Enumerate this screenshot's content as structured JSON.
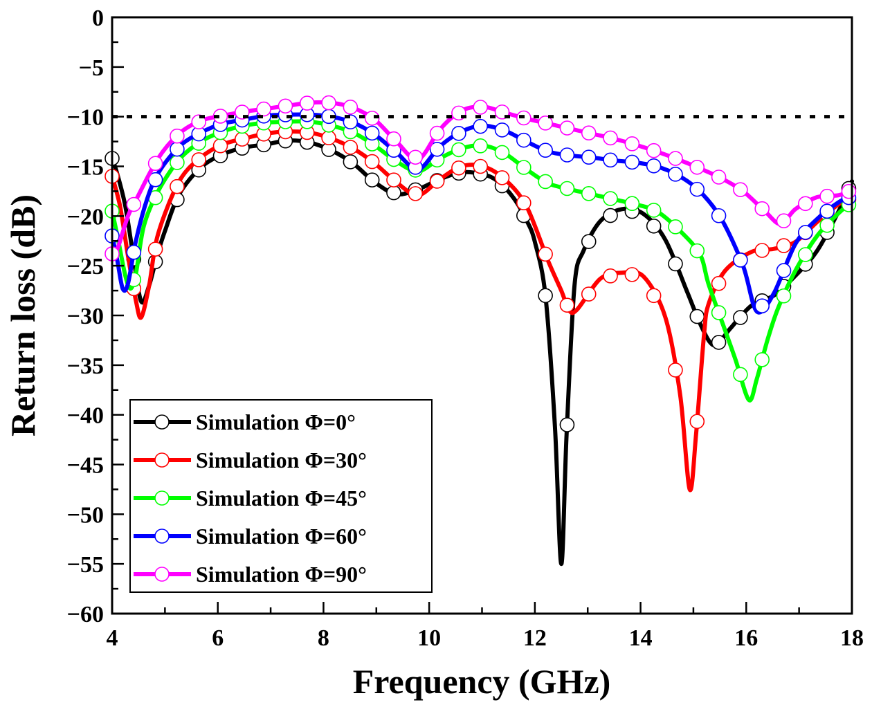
{
  "chart_data": {
    "type": "line",
    "title": "",
    "xlabel": "Frequency (GHz)",
    "ylabel": "Return loss (dB)",
    "xlim": [
      4,
      18
    ],
    "ylim": [
      -60,
      0
    ],
    "xticks": [
      4,
      6,
      8,
      10,
      12,
      14,
      16,
      18
    ],
    "xtick_labels": [
      "4",
      "6",
      "8",
      "10",
      "12",
      "14",
      "16",
      "18"
    ],
    "yticks": [
      0,
      -5,
      -10,
      -15,
      -20,
      -25,
      -30,
      -35,
      -40,
      -45,
      -50,
      -55,
      -60
    ],
    "ytick_labels": [
      "0",
      "−5",
      "−10",
      "−15",
      "−20",
      "−25",
      "−30",
      "−35",
      "−40",
      "−45",
      "−50",
      "−55",
      "−60"
    ],
    "grid": false,
    "legend_position": "bottom-left",
    "reference_line": {
      "y": -10,
      "style": "dotted",
      "color": "#000000"
    },
    "series": [
      {
        "name": "Simulation Φ=0°",
        "color": "#000000",
        "points": [
          [
            4.0,
            -14.2
          ],
          [
            4.1,
            -15.8
          ],
          [
            4.25,
            -19
          ],
          [
            4.4,
            -24
          ],
          [
            4.55,
            -28.6
          ],
          [
            4.7,
            -27
          ],
          [
            4.85,
            -24
          ],
          [
            5.0,
            -21.5
          ],
          [
            5.27,
            -17.8
          ],
          [
            5.68,
            -15.1
          ],
          [
            6.09,
            -13.8
          ],
          [
            6.5,
            -13.1
          ],
          [
            6.91,
            -12.8
          ],
          [
            7.32,
            -12.4
          ],
          [
            7.74,
            -12.6
          ],
          [
            8.15,
            -13.4
          ],
          [
            8.56,
            -14.7
          ],
          [
            8.97,
            -16.6
          ],
          [
            9.38,
            -17.8
          ],
          [
            9.79,
            -17.3
          ],
          [
            10.2,
            -16.3
          ],
          [
            10.61,
            -15.6
          ],
          [
            11.02,
            -15.8
          ],
          [
            11.3,
            -16.5
          ],
          [
            11.6,
            -18.2
          ],
          [
            11.85,
            -20.5
          ],
          [
            12.0,
            -22.6
          ],
          [
            12.2,
            -28
          ],
          [
            12.38,
            -41.2
          ],
          [
            12.5,
            -55
          ],
          [
            12.6,
            -42
          ],
          [
            12.75,
            -27
          ],
          [
            12.92,
            -23.5
          ],
          [
            13.24,
            -20.5
          ],
          [
            13.65,
            -19.3
          ],
          [
            14.06,
            -19.8
          ],
          [
            14.47,
            -22.4
          ],
          [
            14.88,
            -27.6
          ],
          [
            15.1,
            -30.5
          ],
          [
            15.3,
            -32.6
          ],
          [
            15.45,
            -32.9
          ],
          [
            15.7,
            -31.3
          ],
          [
            16.1,
            -29
          ],
          [
            16.52,
            -28
          ],
          [
            16.93,
            -26
          ],
          [
            17.34,
            -23.5
          ],
          [
            17.75,
            -19.5
          ],
          [
            18.0,
            -16.5
          ]
        ]
      },
      {
        "name": "Simulation Φ=30°",
        "color": "#ff0000",
        "points": [
          [
            4.0,
            -16
          ],
          [
            4.15,
            -19
          ],
          [
            4.3,
            -24
          ],
          [
            4.45,
            -28.5
          ],
          [
            4.55,
            -30.2
          ],
          [
            4.7,
            -27
          ],
          [
            4.87,
            -21.8
          ],
          [
            5.27,
            -16.5
          ],
          [
            5.68,
            -14.1
          ],
          [
            6.09,
            -12.8
          ],
          [
            6.5,
            -12.2
          ],
          [
            6.91,
            -11.7
          ],
          [
            7.32,
            -11.5
          ],
          [
            7.74,
            -11.6
          ],
          [
            8.15,
            -12.2
          ],
          [
            8.56,
            -13.2
          ],
          [
            8.97,
            -14.7
          ],
          [
            9.38,
            -16.6
          ],
          [
            9.79,
            -17.9
          ],
          [
            10.2,
            -16.3
          ],
          [
            10.61,
            -15.0
          ],
          [
            11.02,
            -15.0
          ],
          [
            11.43,
            -16.3
          ],
          [
            11.84,
            -19
          ],
          [
            12.25,
            -24.5
          ],
          [
            12.5,
            -27.5
          ],
          [
            12.65,
            -29.5
          ],
          [
            12.8,
            -29.4
          ],
          [
            13.24,
            -26.3
          ],
          [
            13.65,
            -25.7
          ],
          [
            14.06,
            -26.1
          ],
          [
            14.47,
            -30.2
          ],
          [
            14.75,
            -38
          ],
          [
            14.93,
            -47.5
          ],
          [
            15.05,
            -42
          ],
          [
            15.2,
            -32
          ],
          [
            15.29,
            -28.8
          ],
          [
            15.6,
            -25.5
          ],
          [
            16.1,
            -23.6
          ],
          [
            16.52,
            -23.3
          ],
          [
            16.93,
            -22.6
          ],
          [
            17.34,
            -20.6
          ],
          [
            17.75,
            -18.8
          ],
          [
            18.0,
            -18.2
          ]
        ]
      },
      {
        "name": "Simulation Φ=45°",
        "color": "#00ff00",
        "points": [
          [
            4.0,
            -19.5
          ],
          [
            4.1,
            -22
          ],
          [
            4.25,
            -26
          ],
          [
            4.35,
            -27.3
          ],
          [
            4.45,
            -25.8
          ],
          [
            4.6,
            -21
          ],
          [
            4.87,
            -17.5
          ],
          [
            5.27,
            -14.3
          ],
          [
            5.68,
            -12.5
          ],
          [
            6.09,
            -11.5
          ],
          [
            6.5,
            -10.9
          ],
          [
            6.91,
            -10.6
          ],
          [
            7.32,
            -10.5
          ],
          [
            7.74,
            -10.5
          ],
          [
            8.15,
            -10.9
          ],
          [
            8.56,
            -11.6
          ],
          [
            8.97,
            -12.9
          ],
          [
            9.38,
            -14.5
          ],
          [
            9.79,
            -15.5
          ],
          [
            10.2,
            -14.2
          ],
          [
            10.61,
            -13.2
          ],
          [
            11.02,
            -12.9
          ],
          [
            11.43,
            -13.7
          ],
          [
            11.84,
            -15.3
          ],
          [
            12.25,
            -16.7
          ],
          [
            12.66,
            -17.3
          ],
          [
            13.07,
            -17.8
          ],
          [
            13.48,
            -18.3
          ],
          [
            13.89,
            -18.8
          ],
          [
            14.3,
            -19.5
          ],
          [
            14.71,
            -21.3
          ],
          [
            15.12,
            -23.8
          ],
          [
            15.29,
            -26.9
          ],
          [
            15.6,
            -31.5
          ],
          [
            15.8,
            -34.5
          ],
          [
            16.05,
            -38.5
          ],
          [
            16.2,
            -36.4
          ],
          [
            16.4,
            -32.5
          ],
          [
            16.6,
            -29.3
          ],
          [
            16.93,
            -25.5
          ],
          [
            17.34,
            -22
          ],
          [
            17.75,
            -19.7
          ],
          [
            18.0,
            -18.6
          ]
        ]
      },
      {
        "name": "Simulation Φ=60°",
        "color": "#0000ff",
        "points": [
          [
            4.0,
            -22
          ],
          [
            4.1,
            -24.5
          ],
          [
            4.2,
            -27.3
          ],
          [
            4.3,
            -26.8
          ],
          [
            4.45,
            -22.5
          ],
          [
            4.65,
            -18.5
          ],
          [
            4.87,
            -15.7
          ],
          [
            5.27,
            -13.0
          ],
          [
            5.68,
            -11.6
          ],
          [
            6.09,
            -10.7
          ],
          [
            6.5,
            -10.3
          ],
          [
            6.91,
            -9.9
          ],
          [
            7.32,
            -9.8
          ],
          [
            7.74,
            -9.8
          ],
          [
            8.15,
            -10.0
          ],
          [
            8.56,
            -10.6
          ],
          [
            8.97,
            -11.8
          ],
          [
            9.38,
            -13.6
          ],
          [
            9.79,
            -15.3
          ],
          [
            10.2,
            -13.0
          ],
          [
            10.61,
            -11.5
          ],
          [
            11.02,
            -10.9
          ],
          [
            11.43,
            -11.4
          ],
          [
            11.84,
            -12.5
          ],
          [
            12.25,
            -13.5
          ],
          [
            12.66,
            -13.9
          ],
          [
            13.07,
            -14.1
          ],
          [
            13.48,
            -14.4
          ],
          [
            13.89,
            -14.6
          ],
          [
            14.3,
            -15.0
          ],
          [
            14.71,
            -15.9
          ],
          [
            15.12,
            -17.5
          ],
          [
            15.53,
            -20.3
          ],
          [
            15.94,
            -25.0
          ],
          [
            16.2,
            -29.6
          ],
          [
            16.52,
            -27.8
          ],
          [
            16.93,
            -22.8
          ],
          [
            17.34,
            -20.3
          ],
          [
            17.75,
            -18.6
          ],
          [
            18.0,
            -18.0
          ]
        ]
      },
      {
        "name": "Simulation Φ=90°",
        "color": "#ff00ff",
        "points": [
          [
            4.0,
            -23.8
          ],
          [
            4.1,
            -23.3
          ],
          [
            4.3,
            -20
          ],
          [
            4.46,
            -18.3
          ],
          [
            4.87,
            -14.2
          ],
          [
            5.27,
            -11.7
          ],
          [
            5.68,
            -10.4
          ],
          [
            6.09,
            -9.9
          ],
          [
            6.5,
            -9.5
          ],
          [
            6.91,
            -9.2
          ],
          [
            7.32,
            -8.9
          ],
          [
            7.74,
            -8.6
          ],
          [
            8.15,
            -8.6
          ],
          [
            8.56,
            -9.1
          ],
          [
            8.97,
            -10.3
          ],
          [
            9.38,
            -12.5
          ],
          [
            9.79,
            -14.3
          ],
          [
            10.2,
            -11.3
          ],
          [
            10.61,
            -9.4
          ],
          [
            11.02,
            -9.0
          ],
          [
            11.43,
            -9.6
          ],
          [
            11.84,
            -10.2
          ],
          [
            12.25,
            -10.7
          ],
          [
            12.66,
            -11.2
          ],
          [
            13.07,
            -11.7
          ],
          [
            13.48,
            -12.2
          ],
          [
            13.89,
            -12.8
          ],
          [
            14.3,
            -13.5
          ],
          [
            14.71,
            -14.3
          ],
          [
            15.12,
            -15.2
          ],
          [
            15.53,
            -16.2
          ],
          [
            15.94,
            -17.5
          ],
          [
            16.35,
            -19.5
          ],
          [
            16.65,
            -20.8
          ],
          [
            16.93,
            -19.3
          ],
          [
            17.34,
            -18.1
          ],
          [
            17.75,
            -17.9
          ],
          [
            18.0,
            -17.4
          ]
        ]
      }
    ]
  }
}
